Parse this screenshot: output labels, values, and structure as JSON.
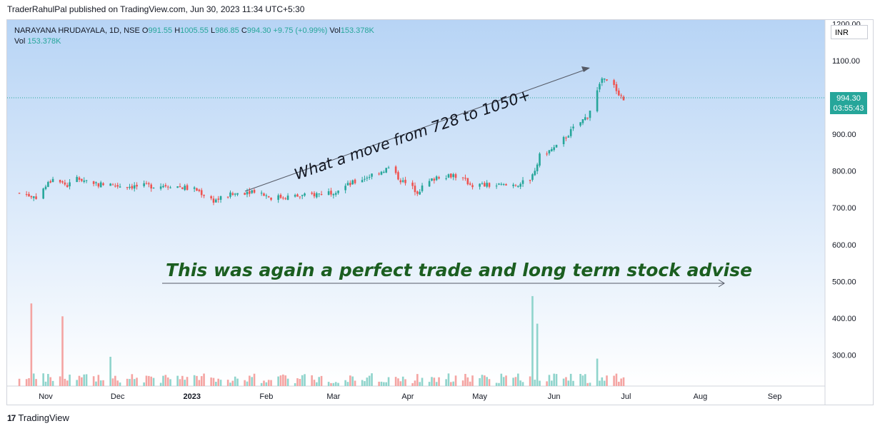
{
  "publish_line": "TraderRahulPal published on TradingView.com, Jun 30, 2023 11:34 UTC+5:30",
  "footer": {
    "logo": "17",
    "brand": "TradingView"
  },
  "legend": {
    "line1_prefix": "NARAYANA HRUDAYALA, 1D, NSE",
    "o_label": "O",
    "o": "991.55",
    "h_label": "H",
    "h": "1005.55",
    "l_label": "L",
    "l": "986.85",
    "c_label": "C",
    "c": "994.30",
    "change": "+9.75 (+0.99%)",
    "vol_label": "Vol",
    "vol": "153.378K",
    "line2_label": "Vol",
    "line2_vol": "153.378K"
  },
  "currency": "INR",
  "last_price": {
    "price": "994.30",
    "countdown": "03:55:43"
  },
  "colors": {
    "up": "#26a69a",
    "down": "#ef5350",
    "vol_up": "#8fd4cc",
    "vol_down": "#f4a4a2",
    "bg_top": "#b7d4f5",
    "bg_bottom": "#ffffff",
    "annotation_text": "#1b5e20",
    "annotation_dark": "#131722"
  },
  "annotations": {
    "move_text": "What a move from 728 to 1050+",
    "trade_text": "This was again a perfect trade and long term stock advise"
  },
  "chart_data": {
    "type": "candlestick",
    "title": "NARAYANA HRUDAYALA, 1D, NSE",
    "y_ticks": [
      "1200.00",
      "1100.00",
      "900.00",
      "800.00",
      "700.00",
      "600.00",
      "500.00",
      "400.00",
      "300.00"
    ],
    "y_range": [
      200,
      1200
    ],
    "x_labels": [
      "Nov",
      "Dec",
      "2023",
      "Feb",
      "Mar",
      "Apr",
      "May",
      "Jun",
      "Jul",
      "Aug",
      "Sep"
    ],
    "price_anchors": [
      [
        "2022-10-21",
        740
      ],
      [
        "2022-10-28",
        730
      ],
      [
        "2022-11-04",
        780
      ],
      [
        "2022-11-10",
        760
      ],
      [
        "2022-11-14",
        780
      ],
      [
        "2022-11-25",
        762
      ],
      [
        "2022-12-09",
        758
      ],
      [
        "2022-12-23",
        762
      ],
      [
        "2023-01-03",
        748
      ],
      [
        "2023-01-10",
        720
      ],
      [
        "2023-01-20",
        740
      ],
      [
        "2023-01-27",
        748
      ],
      [
        "2023-02-03",
        728
      ],
      [
        "2023-02-17",
        732
      ],
      [
        "2023-03-01",
        745
      ],
      [
        "2023-03-10",
        770
      ],
      [
        "2023-03-17",
        790
      ],
      [
        "2023-03-24",
        808
      ],
      [
        "2023-03-30",
        770
      ],
      [
        "2023-04-05",
        745
      ],
      [
        "2023-04-13",
        785
      ],
      [
        "2023-04-20",
        790
      ],
      [
        "2023-04-28",
        762
      ],
      [
        "2023-05-12",
        760
      ],
      [
        "2023-05-22",
        770
      ],
      [
        "2023-05-26",
        840
      ],
      [
        "2023-06-02",
        865
      ],
      [
        "2023-06-09",
        915
      ],
      [
        "2023-06-15",
        950
      ],
      [
        "2023-06-21",
        1050
      ],
      [
        "2023-06-26",
        1030
      ],
      [
        "2023-06-30",
        994.3
      ]
    ],
    "volume_spikes": [
      [
        "2022-10-26",
        440
      ],
      [
        "2022-11-08",
        405
      ],
      [
        "2022-11-28",
        295
      ],
      [
        "2023-05-23",
        460
      ],
      [
        "2023-05-25",
        385
      ],
      [
        "2023-06-19",
        290
      ]
    ]
  }
}
